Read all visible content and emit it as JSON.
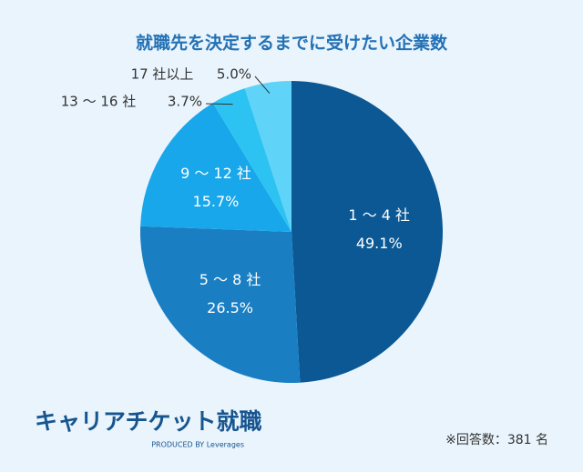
{
  "chart_data": {
    "type": "pie",
    "title": "就職先を決定するまでに受けたい企業数",
    "categories": [
      "1 ～ 4 社",
      "5 ～ 8 社",
      "9 ～ 12 社",
      "13 ～ 16 社",
      "17 社以上"
    ],
    "values": [
      49.1,
      26.5,
      15.7,
      3.7,
      5.0
    ],
    "value_labels": [
      "49.1%",
      "26.5%",
      "15.7%",
      "3.7%",
      "5.0%"
    ],
    "colors": [
      "#0b5894",
      "#1a7ec3",
      "#18a7ea",
      "#2cc3f2",
      "#5fd3f8"
    ],
    "logo": "キャリアチケット就職",
    "logo_sub": "PRODUCED BY Leverages",
    "note": "※回答数：381 名"
  }
}
